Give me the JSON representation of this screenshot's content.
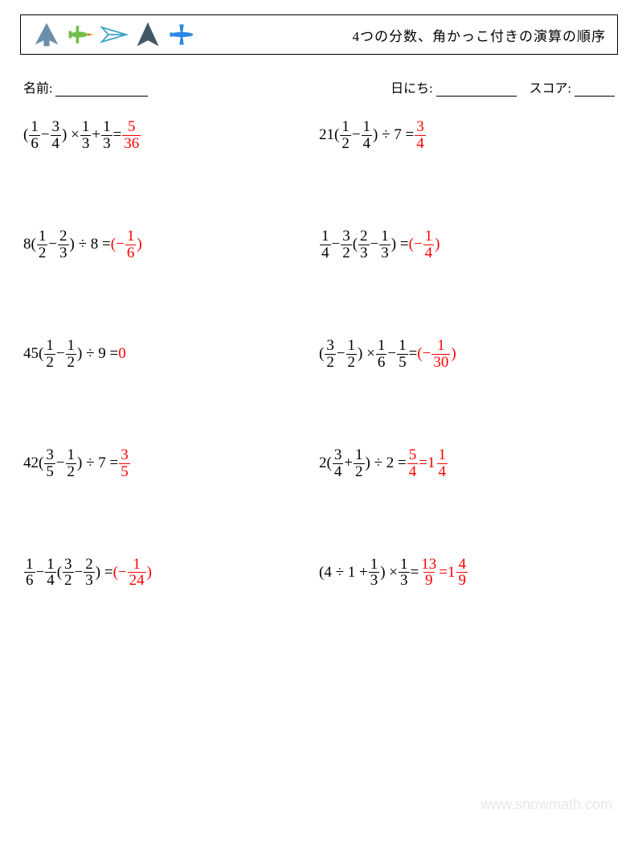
{
  "header": {
    "title": "4つの分数、角かっこ付きの演算の順序",
    "plane_colors": {
      "p1": "#6b8fa8",
      "p2_body": "#6fbf4a",
      "p2_nose": "#ff7a1a",
      "p3": "#3aa3c9",
      "p4": "#435866",
      "p5": "#2b87e2"
    }
  },
  "meta": {
    "name_label": "名前:",
    "name_blank_width": 115,
    "date_label": "日にち:",
    "date_blank_width": 100,
    "score_label": "スコア:",
    "score_blank_width": 50
  },
  "problems": [
    {
      "tokens": [
        {
          "t": "txt",
          "v": "("
        },
        {
          "t": "frac",
          "n": "1",
          "d": "6"
        },
        {
          "t": "txt",
          "v": " − "
        },
        {
          "t": "frac",
          "n": "3",
          "d": "4"
        },
        {
          "t": "txt",
          "v": ") × "
        },
        {
          "t": "frac",
          "n": "1",
          "d": "3"
        },
        {
          "t": "txt",
          "v": " + "
        },
        {
          "t": "frac",
          "n": "1",
          "d": "3"
        },
        {
          "t": "txt",
          "v": " = "
        },
        {
          "t": "frac",
          "n": "5",
          "d": "36",
          "ans": true
        }
      ]
    },
    {
      "tokens": [
        {
          "t": "txt",
          "v": "21("
        },
        {
          "t": "frac",
          "n": "1",
          "d": "2"
        },
        {
          "t": "txt",
          "v": " − "
        },
        {
          "t": "frac",
          "n": "1",
          "d": "4"
        },
        {
          "t": "txt",
          "v": ") ÷ 7 = "
        },
        {
          "t": "frac",
          "n": "3",
          "d": "4",
          "ans": true
        }
      ]
    },
    {
      "tokens": [
        {
          "t": "txt",
          "v": "8("
        },
        {
          "t": "frac",
          "n": "1",
          "d": "2"
        },
        {
          "t": "txt",
          "v": " − "
        },
        {
          "t": "frac",
          "n": "2",
          "d": "3"
        },
        {
          "t": "txt",
          "v": ") ÷ 8 = "
        },
        {
          "t": "txt",
          "v": "(−",
          "ans": true
        },
        {
          "t": "frac",
          "n": "1",
          "d": "6",
          "ans": true
        },
        {
          "t": "txt",
          "v": ")",
          "ans": true
        }
      ]
    },
    {
      "tokens": [
        {
          "t": "frac",
          "n": "1",
          "d": "4"
        },
        {
          "t": "txt",
          "v": " − "
        },
        {
          "t": "frac",
          "n": "3",
          "d": "2"
        },
        {
          "t": "txt",
          "v": "("
        },
        {
          "t": "frac",
          "n": "2",
          "d": "3"
        },
        {
          "t": "txt",
          "v": " − "
        },
        {
          "t": "frac",
          "n": "1",
          "d": "3"
        },
        {
          "t": "txt",
          "v": ") = "
        },
        {
          "t": "txt",
          "v": "(−",
          "ans": true
        },
        {
          "t": "frac",
          "n": "1",
          "d": "4",
          "ans": true
        },
        {
          "t": "txt",
          "v": ")",
          "ans": true
        }
      ]
    },
    {
      "tokens": [
        {
          "t": "txt",
          "v": "45("
        },
        {
          "t": "frac",
          "n": "1",
          "d": "2"
        },
        {
          "t": "txt",
          "v": " − "
        },
        {
          "t": "frac",
          "n": "1",
          "d": "2"
        },
        {
          "t": "txt",
          "v": ") ÷ 9 = "
        },
        {
          "t": "txt",
          "v": "0",
          "ans": true
        }
      ]
    },
    {
      "tokens": [
        {
          "t": "txt",
          "v": "("
        },
        {
          "t": "frac",
          "n": "3",
          "d": "2"
        },
        {
          "t": "txt",
          "v": " − "
        },
        {
          "t": "frac",
          "n": "1",
          "d": "2"
        },
        {
          "t": "txt",
          "v": ") × "
        },
        {
          "t": "frac",
          "n": "1",
          "d": "6"
        },
        {
          "t": "txt",
          "v": " − "
        },
        {
          "t": "frac",
          "n": "1",
          "d": "5"
        },
        {
          "t": "txt",
          "v": " = "
        },
        {
          "t": "txt",
          "v": "(−",
          "ans": true
        },
        {
          "t": "frac",
          "n": "1",
          "d": "30",
          "ans": true
        },
        {
          "t": "txt",
          "v": ")",
          "ans": true
        }
      ]
    },
    {
      "tokens": [
        {
          "t": "txt",
          "v": "42("
        },
        {
          "t": "frac",
          "n": "3",
          "d": "5"
        },
        {
          "t": "txt",
          "v": " − "
        },
        {
          "t": "frac",
          "n": "1",
          "d": "2"
        },
        {
          "t": "txt",
          "v": ") ÷ 7 = "
        },
        {
          "t": "frac",
          "n": "3",
          "d": "5",
          "ans": true
        }
      ]
    },
    {
      "tokens": [
        {
          "t": "txt",
          "v": "2("
        },
        {
          "t": "frac",
          "n": "3",
          "d": "4"
        },
        {
          "t": "txt",
          "v": " + "
        },
        {
          "t": "frac",
          "n": "1",
          "d": "2"
        },
        {
          "t": "txt",
          "v": ") ÷ 2 = "
        },
        {
          "t": "frac",
          "n": "5",
          "d": "4",
          "ans": true
        },
        {
          "t": "txt",
          "v": " = ",
          "ans": true
        },
        {
          "t": "mixed",
          "w": "1",
          "n": "1",
          "d": "4",
          "ans": true
        }
      ]
    },
    {
      "tokens": [
        {
          "t": "frac",
          "n": "1",
          "d": "6"
        },
        {
          "t": "txt",
          "v": " − "
        },
        {
          "t": "frac",
          "n": "1",
          "d": "4"
        },
        {
          "t": "txt",
          "v": "("
        },
        {
          "t": "frac",
          "n": "3",
          "d": "2"
        },
        {
          "t": "txt",
          "v": " − "
        },
        {
          "t": "frac",
          "n": "2",
          "d": "3"
        },
        {
          "t": "txt",
          "v": ") = "
        },
        {
          "t": "txt",
          "v": "(−",
          "ans": true
        },
        {
          "t": "frac",
          "n": "1",
          "d": "24",
          "ans": true
        },
        {
          "t": "txt",
          "v": ")",
          "ans": true
        }
      ]
    },
    {
      "tokens": [
        {
          "t": "txt",
          "v": "(4 ÷ 1 + "
        },
        {
          "t": "frac",
          "n": "1",
          "d": "3"
        },
        {
          "t": "txt",
          "v": ") × "
        },
        {
          "t": "frac",
          "n": "1",
          "d": "3"
        },
        {
          "t": "txt",
          "v": " = "
        },
        {
          "t": "frac",
          "n": "13",
          "d": "9",
          "ans": true
        },
        {
          "t": "txt",
          "v": " = ",
          "ans": true
        },
        {
          "t": "mixed",
          "w": "1",
          "n": "4",
          "d": "9",
          "ans": true
        }
      ]
    }
  ],
  "watermark": "www.snowmath.com"
}
